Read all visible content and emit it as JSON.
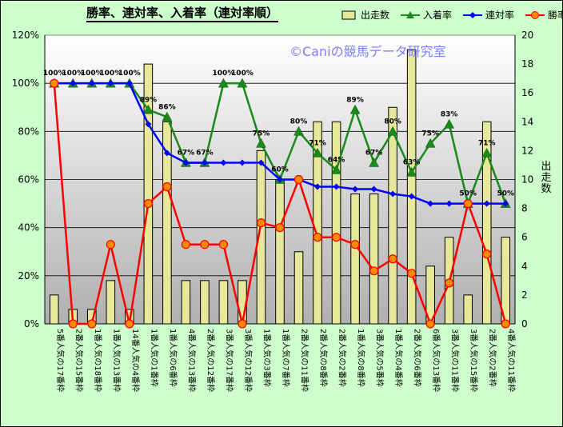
{
  "chart_data": {
    "type": "bar-line combo",
    "title": "勝率、連対率、入着率（連対率順）",
    "watermark": "©Caniの競馬データ研究室",
    "categories": [
      "5番人気の17番枠",
      "2番人気の15番枠",
      "1番人気の18番枠",
      "1番人気の13番枠",
      "14番人気の4番枠",
      "1番人気の1番枠",
      "1番人気の6番枠",
      "4番人気の13番枠",
      "2番人気の12番枠",
      "3番人気の17番枠",
      "3番人気の12番枠",
      "1番人気の3番枠",
      "1番人気の7番枠",
      "2番人気の11番枠",
      "2番人気の8番枠",
      "2番人気の2番枠",
      "1番人気の8番枠",
      "3番人気の5番枠",
      "1番人気の4番枠",
      "2番人気の6番枠",
      "6番人気の13番枠",
      "3番人気の11番枠",
      "3番人気の15番枠",
      "2番人気の2番枠",
      "4番人気の11番枠"
    ],
    "series": [
      {
        "name": "出走数",
        "axis": "right",
        "kind": "bar",
        "color": "#e8e89a",
        "values": [
          2,
          1,
          1,
          3,
          1,
          18,
          14,
          3,
          3,
          3,
          3,
          12,
          10,
          5,
          14,
          14,
          9,
          9,
          15,
          19,
          4,
          6,
          2,
          14,
          6
        ]
      },
      {
        "name": "入着率",
        "axis": "left",
        "kind": "line",
        "color": "#1a8a1a",
        "marker": "triangle",
        "values": [
          100,
          100,
          100,
          100,
          100,
          89,
          86,
          67,
          67,
          100,
          100,
          75,
          60,
          80,
          71,
          64,
          89,
          67,
          80,
          63,
          75,
          83,
          50,
          71,
          50
        ]
      },
      {
        "name": "連対率",
        "axis": "left",
        "kind": "line",
        "color": "#0000ff",
        "marker": "diamond",
        "values": [
          100,
          100,
          100,
          100,
          100,
          83,
          71,
          67,
          67,
          67,
          67,
          67,
          60,
          60,
          57,
          57,
          56,
          56,
          54,
          53,
          50,
          50,
          50,
          50,
          50
        ]
      },
      {
        "name": "勝率",
        "axis": "left",
        "kind": "line",
        "color": "#ff0000",
        "marker": "circle",
        "values": [
          100,
          0,
          0,
          33,
          0,
          50,
          57,
          33,
          33,
          33,
          0,
          42,
          40,
          60,
          36,
          36,
          33,
          22,
          27,
          21,
          0,
          17,
          50,
          29,
          0
        ]
      }
    ],
    "data_labels_series": "入着率",
    "data_labels": [
      "100%",
      "100%",
      "100%",
      "100%",
      "100%",
      "89%",
      "86%",
      "67%",
      "67%",
      "100%",
      "100%",
      "75%",
      "60%",
      "80%",
      "71%",
      "64%",
      "89%",
      "67%",
      "80%",
      "63%",
      "75%",
      "83%",
      "50%",
      "71%",
      "50%"
    ],
    "y_left": {
      "min": 0,
      "max": 120,
      "step": 20,
      "tick_labels": [
        "0%",
        "20%",
        "40%",
        "60%",
        "80%",
        "100%",
        "120%"
      ]
    },
    "y_right": {
      "min": 0,
      "max": 20,
      "step": 2,
      "title": "出走数",
      "tick_labels": [
        "0",
        "2",
        "4",
        "6",
        "8",
        "10",
        "12",
        "14",
        "16",
        "18",
        "20"
      ]
    },
    "legend": {
      "position": "top-right"
    }
  }
}
